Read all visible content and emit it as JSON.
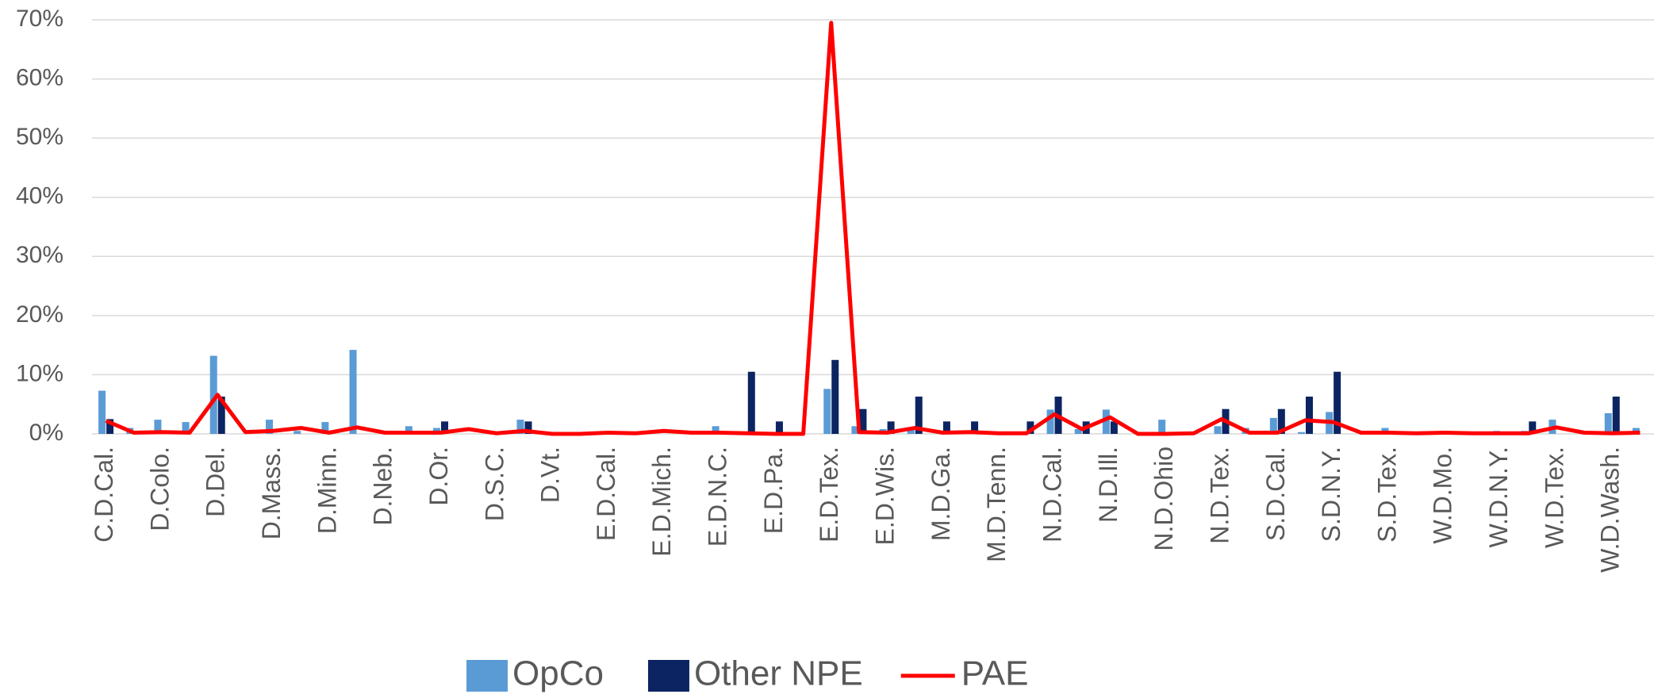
{
  "chart_data": {
    "type": "bar",
    "categories": [
      "C.D.Cal.",
      null,
      "D.Colo.",
      null,
      "D.Del.",
      null,
      "D.Mass.",
      null,
      "D.Minn.",
      null,
      "D.Neb.",
      null,
      "D.Or.",
      null,
      "D.S.C.",
      null,
      "D.Vt.",
      null,
      "E.D.Cal.",
      null,
      "E.D.Mich.",
      null,
      "E.D.N.C.",
      null,
      "E.D.Pa.",
      null,
      "E.D.Tex.",
      null,
      "E.D.Wis.",
      null,
      "M.D.Ga.",
      null,
      "M.D.Tenn.",
      null,
      "N.D.Cal.",
      null,
      "N.D.Ill.",
      null,
      "N.D.Ohio",
      null,
      "N.D.Tex.",
      null,
      "S.D.Cal.",
      null,
      "S.D.N.Y.",
      null,
      "S.D.Tex.",
      null,
      "W.D.Mo.",
      null,
      "W.D.N.Y.",
      null,
      "W.D.Tex.",
      null,
      "W.D.Wash.",
      null
    ],
    "series": [
      {
        "name": "OpCo",
        "type": "bar",
        "color": "#5b9bd5",
        "values": [
          7.3,
          1,
          2.4,
          2,
          13.2,
          0,
          2.4,
          0.5,
          2,
          14.2,
          0,
          1.3,
          1,
          0,
          0,
          2.4,
          0,
          0,
          0,
          0,
          0,
          0,
          1.3,
          0,
          0,
          0,
          7.6,
          1.3,
          0.8,
          1,
          0,
          0,
          0,
          0,
          4.1,
          0.8,
          4.1,
          0,
          2.4,
          0,
          1.3,
          1,
          2.7,
          0.3,
          3.7,
          0,
          1,
          0,
          0,
          0,
          0.5,
          0.5,
          2.4,
          0,
          3.5,
          1
        ]
      },
      {
        "name": "Other NPE",
        "type": "bar",
        "color": "#0c2461",
        "values": [
          2.5,
          0,
          0,
          0,
          6.3,
          0,
          0,
          0,
          0,
          0,
          0,
          0,
          2.1,
          0,
          0,
          2.1,
          0,
          0,
          0,
          0,
          0,
          0,
          0,
          10.5,
          2.1,
          0,
          12.5,
          4.2,
          2.1,
          6.3,
          2.1,
          2.1,
          0,
          2.1,
          6.3,
          2.1,
          2.1,
          0,
          0,
          0,
          4.2,
          0,
          4.2,
          6.3,
          10.5,
          0,
          0,
          0,
          0,
          0,
          0,
          2.1,
          0,
          0,
          6.3,
          0
        ]
      },
      {
        "name": "PAE",
        "type": "line",
        "color": "#ff0000",
        "values": [
          2.2,
          0.2,
          0.3,
          0.2,
          6.6,
          0.3,
          0.5,
          1,
          0.2,
          1.1,
          0.2,
          0.2,
          0.2,
          0.8,
          0.1,
          0.5,
          0,
          0,
          0.2,
          0.1,
          0.5,
          0.2,
          0.2,
          0.1,
          0,
          0,
          69.5,
          0.3,
          0.2,
          1,
          0.2,
          0.3,
          0.1,
          0.1,
          3.3,
          0.8,
          2.8,
          0,
          0,
          0.1,
          2.5,
          0.2,
          0.2,
          2.3,
          2,
          0.2,
          0.2,
          0.1,
          0.2,
          0.1,
          0.1,
          0.1,
          1.1,
          0.2,
          0.1,
          0.2
        ]
      }
    ],
    "ylim": [
      0,
      70
    ],
    "yticks": [
      {
        "value": 0,
        "label": "0%"
      },
      {
        "value": 10,
        "label": "10%"
      },
      {
        "value": 20,
        "label": "20%"
      },
      {
        "value": 30,
        "label": "30%"
      },
      {
        "value": 40,
        "label": "40%"
      },
      {
        "value": 50,
        "label": "50%"
      },
      {
        "value": 60,
        "label": "60%"
      },
      {
        "value": 70,
        "label": "70%"
      }
    ],
    "grid": true,
    "legend": "bottom"
  }
}
